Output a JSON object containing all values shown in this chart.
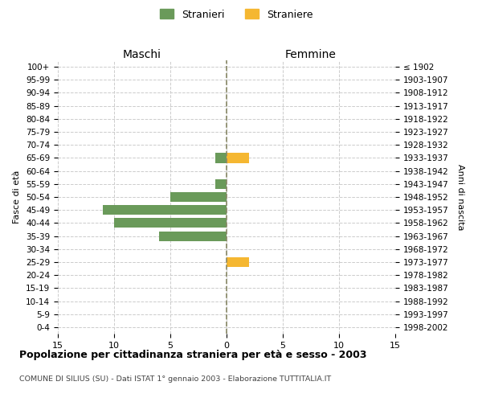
{
  "age_groups": [
    "100+",
    "95-99",
    "90-94",
    "85-89",
    "80-84",
    "75-79",
    "70-74",
    "65-69",
    "60-64",
    "55-59",
    "50-54",
    "45-49",
    "40-44",
    "35-39",
    "30-34",
    "25-29",
    "20-24",
    "15-19",
    "10-14",
    "5-9",
    "0-4"
  ],
  "birth_years": [
    "≤ 1902",
    "1903-1907",
    "1908-1912",
    "1913-1917",
    "1918-1922",
    "1923-1927",
    "1928-1932",
    "1933-1937",
    "1938-1942",
    "1943-1947",
    "1948-1952",
    "1953-1957",
    "1958-1962",
    "1963-1967",
    "1968-1972",
    "1973-1977",
    "1978-1982",
    "1983-1987",
    "1988-1992",
    "1993-1997",
    "1998-2002"
  ],
  "males": [
    0,
    0,
    0,
    0,
    0,
    0,
    0,
    1,
    0,
    1,
    5,
    11,
    10,
    6,
    0,
    0,
    0,
    0,
    0,
    0,
    0
  ],
  "females": [
    0,
    0,
    0,
    0,
    0,
    0,
    0,
    2,
    0,
    0,
    0,
    0,
    0,
    0,
    0,
    2,
    0,
    0,
    0,
    0,
    0
  ],
  "male_color": "#6a9a5a",
  "female_color": "#f5b731",
  "title": "Popolazione per cittadinanza straniera per età e sesso - 2003",
  "subtitle": "COMUNE DI SILIUS (SU) - Dati ISTAT 1° gennaio 2003 - Elaborazione TUTTITALIA.IT",
  "label_maschi": "Maschi",
  "label_femmine": "Femmine",
  "ylabel_left": "Fasce di età",
  "ylabel_right": "Anni di nascita",
  "xlim": 15,
  "legend_stranieri": "Stranieri",
  "legend_straniere": "Straniere",
  "grid_color": "#cccccc",
  "bg_color": "#ffffff",
  "centerline_color": "#888866"
}
